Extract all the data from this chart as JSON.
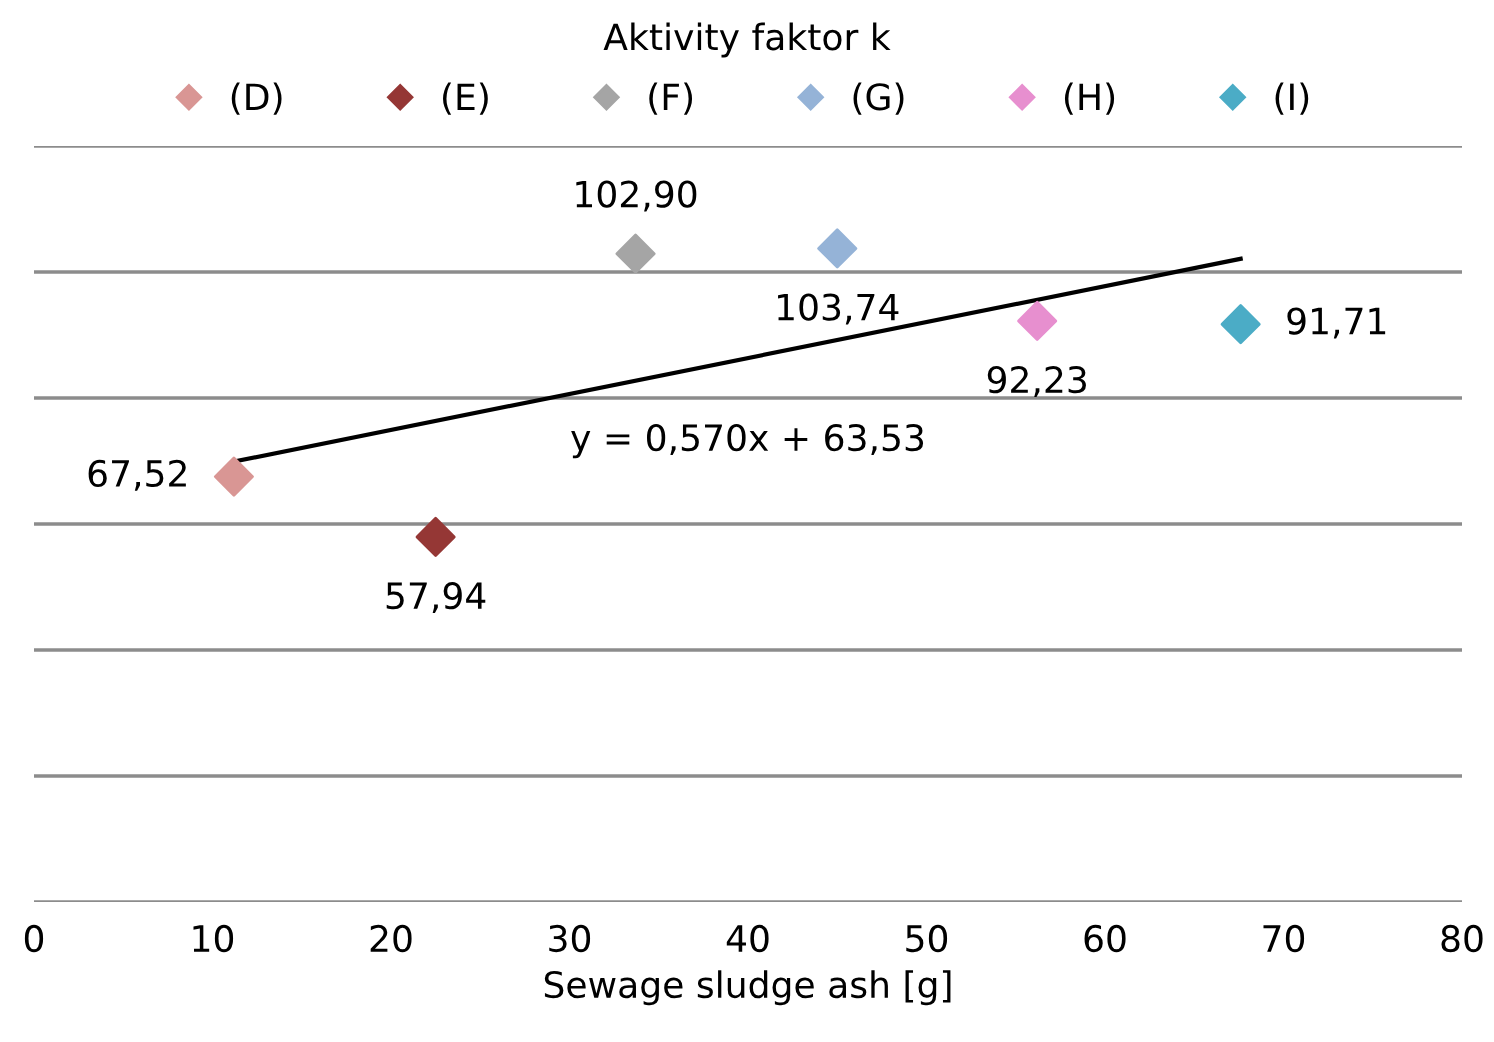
{
  "chart_data": {
    "type": "scatter",
    "title": "Aktivity faktor k",
    "xlabel": "Sewage sludge ash [g]",
    "xlim": [
      0,
      80
    ],
    "xticks": [
      0,
      10,
      20,
      30,
      40,
      50,
      60,
      70,
      80
    ],
    "ylim": [
      0,
      120
    ],
    "yticks": [
      {
        "value": 0,
        "label": null
      },
      {
        "value": 20,
        "label": null
      },
      {
        "value": 40,
        "label": null
      },
      {
        "value": 60,
        "label": null
      },
      {
        "value": 80,
        "label": null
      },
      {
        "value": 100,
        "label": null
      },
      {
        "value": 120,
        "label": null
      }
    ],
    "tick_labels": "x",
    "grid": "y",
    "legend": "top",
    "marker": "diamond",
    "series": [
      {
        "name": "(D)",
        "color": "#d99694",
        "x": [
          11.2
        ],
        "values": [
          67.52
        ],
        "value_labels": [
          "67,52"
        ]
      },
      {
        "name": "(E)",
        "color": "#953735",
        "x": [
          22.5
        ],
        "values": [
          57.94
        ],
        "value_labels": [
          "57,94"
        ]
      },
      {
        "name": "(F)",
        "color": "#a5a5a5",
        "x": [
          33.7
        ],
        "values": [
          102.9
        ],
        "value_labels": [
          "102,90"
        ]
      },
      {
        "name": "(G)",
        "color": "#95b3d7",
        "x": [
          45.0
        ],
        "values": [
          103.74
        ],
        "value_labels": [
          "103,74"
        ]
      },
      {
        "name": "(H)",
        "color": "#e78fcf",
        "x": [
          56.2
        ],
        "values": [
          92.23
        ],
        "value_labels": [
          "92,23"
        ]
      },
      {
        "name": "(I)",
        "color": "#4bacc6",
        "x": [
          67.6
        ],
        "values": [
          91.71
        ],
        "value_labels": [
          "91,71"
        ]
      },
      {
        "type": "line",
        "color": "#000000",
        "x": [
          11.2,
          67.6
        ],
        "values": [
          69.9,
          102.1
        ],
        "marker": "none"
      }
    ],
    "annotations": [
      "y = 0,570x + 63,53"
    ]
  }
}
